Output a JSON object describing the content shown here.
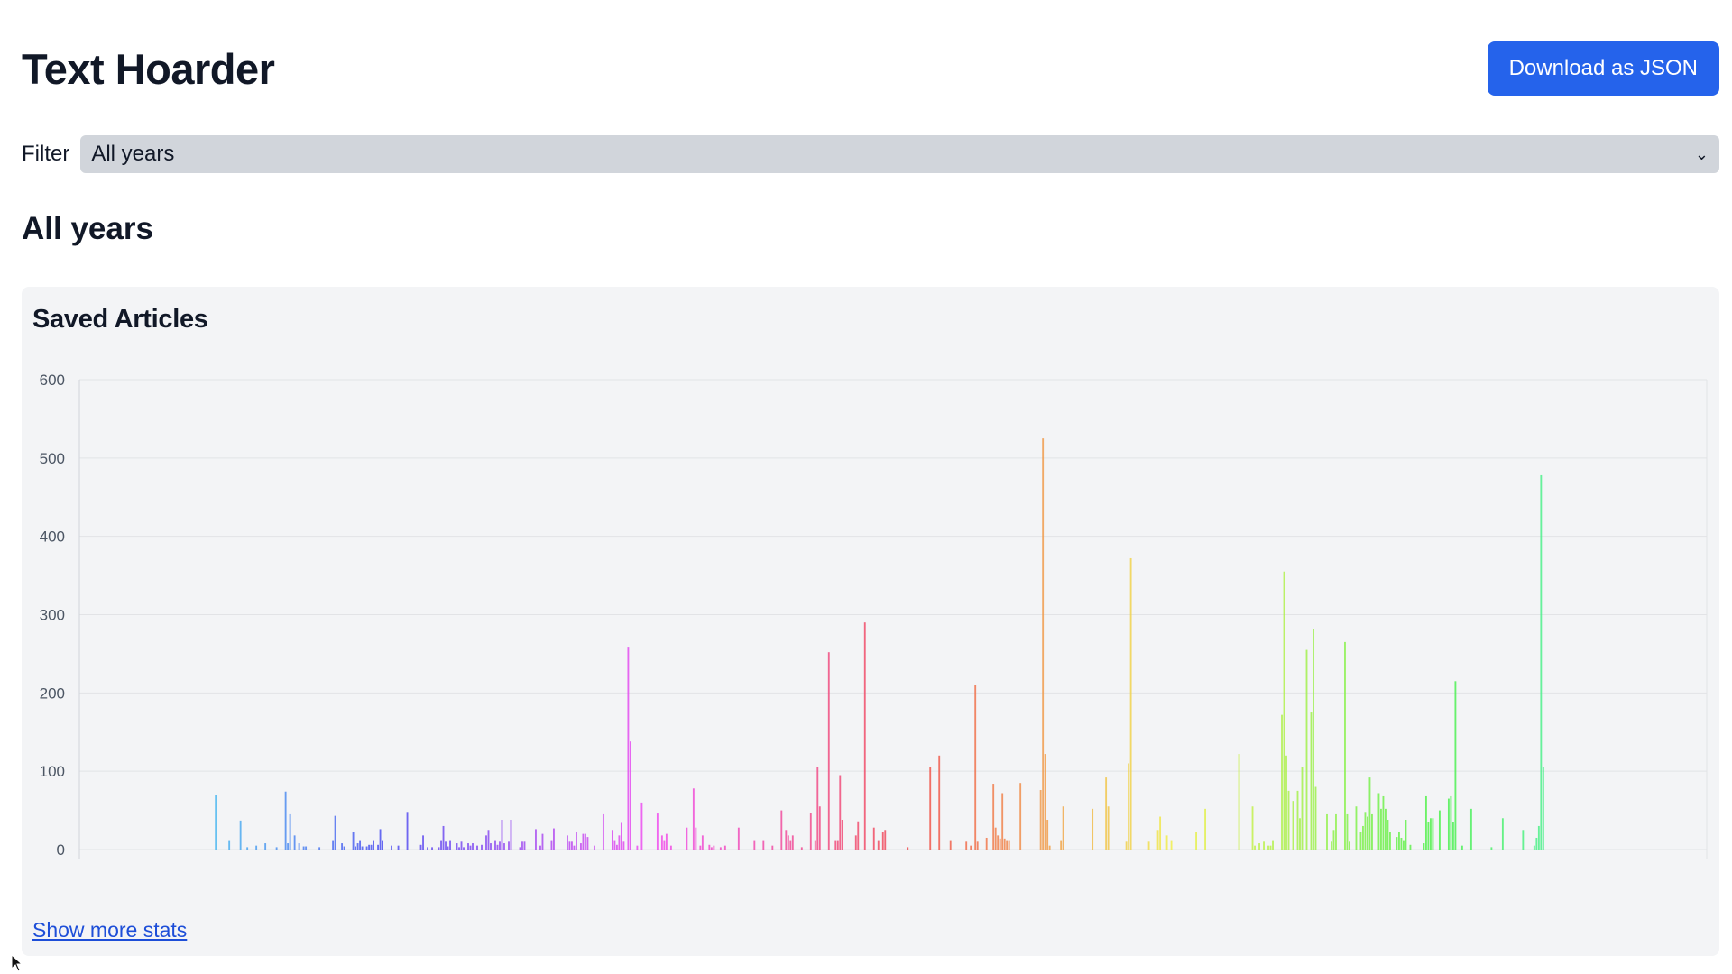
{
  "app": {
    "title": "Text Hoarder"
  },
  "header": {
    "download_label": "Download as JSON"
  },
  "filter": {
    "label": "Filter",
    "selected": "All years"
  },
  "section": {
    "title": "All years"
  },
  "card": {
    "title": "Saved Articles",
    "more_link": "Show more stats"
  },
  "colors": {
    "accent": "#2563eb",
    "select_bg": "#d1d5db",
    "card_bg": "#f3f4f6",
    "link": "#1d4ed8"
  },
  "chart_data": {
    "type": "bar",
    "title": "Saved Articles",
    "xlabel": "",
    "ylabel": "",
    "ylim": [
      0,
      600
    ],
    "yticks": [
      0,
      100,
      200,
      300,
      400,
      500,
      600
    ],
    "grid": true,
    "legend": "none",
    "values": [
      0,
      0,
      0,
      0,
      0,
      0,
      0,
      0,
      0,
      0,
      0,
      0,
      0,
      0,
      0,
      0,
      0,
      0,
      0,
      0,
      0,
      0,
      0,
      0,
      0,
      0,
      0,
      0,
      0,
      0,
      0,
      0,
      0,
      0,
      0,
      0,
      0,
      0,
      0,
      0,
      0,
      0,
      0,
      0,
      0,
      0,
      0,
      0,
      0,
      0,
      0,
      0,
      0,
      0,
      0,
      0,
      0,
      0,
      0,
      0,
      70,
      0,
      0,
      0,
      0,
      0,
      12,
      0,
      0,
      0,
      0,
      37,
      0,
      0,
      3,
      0,
      0,
      0,
      5,
      0,
      0,
      0,
      8,
      0,
      0,
      0,
      0,
      3,
      0,
      0,
      0,
      74,
      8,
      45,
      0,
      18,
      0,
      8,
      0,
      4,
      4,
      0,
      0,
      0,
      0,
      0,
      3,
      0,
      0,
      0,
      0,
      0,
      12,
      43,
      0,
      0,
      8,
      4,
      0,
      0,
      0,
      22,
      4,
      8,
      12,
      4,
      0,
      4,
      6,
      6,
      12,
      0,
      6,
      26,
      12,
      0,
      0,
      0,
      5,
      0,
      0,
      5,
      0,
      0,
      0,
      48,
      0,
      0,
      0,
      0,
      0,
      6,
      18,
      0,
      3,
      0,
      3,
      0,
      0,
      3,
      12,
      30,
      10,
      4,
      12,
      0,
      0,
      8,
      3,
      10,
      3,
      0,
      8,
      5,
      8,
      0,
      5,
      0,
      6,
      0,
      18,
      25,
      8,
      0,
      12,
      6,
      10,
      38,
      8,
      0,
      10,
      38,
      0,
      0,
      0,
      3,
      10,
      10,
      0,
      0,
      0,
      0,
      26,
      0,
      5,
      20,
      0,
      0,
      0,
      12,
      27,
      0,
      0,
      0,
      0,
      0,
      18,
      10,
      10,
      5,
      22,
      0,
      8,
      20,
      20,
      16,
      0,
      0,
      5,
      0,
      0,
      0,
      45,
      0,
      0,
      0,
      25,
      12,
      6,
      18,
      34,
      10,
      0,
      259,
      138,
      0,
      0,
      5,
      0,
      60,
      0,
      0,
      0,
      0,
      0,
      0,
      46,
      0,
      18,
      12,
      20,
      0,
      5,
      0,
      0,
      0,
      0,
      0,
      0,
      28,
      0,
      0,
      78,
      28,
      0,
      5,
      18,
      0,
      0,
      6,
      3,
      5,
      0,
      0,
      3,
      0,
      5,
      0,
      0,
      0,
      0,
      0,
      28,
      0,
      0,
      0,
      0,
      0,
      0,
      12,
      0,
      0,
      0,
      12,
      0,
      0,
      0,
      5,
      0,
      0,
      0,
      50,
      0,
      25,
      18,
      12,
      18,
      0,
      0,
      0,
      3,
      0,
      0,
      0,
      47,
      0,
      12,
      105,
      55,
      0,
      0,
      0,
      252,
      0,
      0,
      12,
      12,
      95,
      38,
      0,
      0,
      0,
      0,
      0,
      18,
      36,
      0,
      0,
      290,
      0,
      0,
      0,
      28,
      0,
      12,
      0,
      22,
      25,
      0,
      0,
      0,
      0,
      0,
      0,
      0,
      0,
      0,
      3,
      0,
      0,
      0,
      0,
      0,
      0,
      0,
      0,
      0,
      105,
      0,
      0,
      0,
      120,
      0,
      0,
      0,
      0,
      12,
      0,
      0,
      0,
      0,
      0,
      0,
      10,
      0,
      5,
      0,
      210,
      10,
      0,
      0,
      0,
      15,
      0,
      0,
      84,
      28,
      18,
      14,
      72,
      14,
      12,
      12,
      0,
      0,
      0,
      0,
      85,
      0,
      0,
      0,
      0,
      0,
      0,
      0,
      0,
      76,
      525,
      122,
      38,
      5,
      0,
      0,
      0,
      0,
      12,
      55,
      0,
      0,
      0,
      0,
      0,
      0,
      0,
      0,
      0,
      0,
      0,
      0,
      52,
      0,
      0,
      0,
      0,
      0,
      92,
      55,
      0,
      0,
      0,
      0,
      0,
      0,
      0,
      10,
      110,
      372,
      0,
      0,
      0,
      0,
      0,
      0,
      0,
      10,
      0,
      0,
      0,
      25,
      42,
      0,
      0,
      18,
      0,
      12,
      0,
      0,
      0,
      0,
      0,
      0,
      0,
      0,
      0,
      0,
      22,
      0,
      0,
      0,
      52,
      0,
      0,
      0,
      0,
      0,
      0,
      0,
      0,
      0,
      0,
      0,
      0,
      0,
      0,
      122,
      0,
      0,
      0,
      0,
      0,
      55,
      5,
      0,
      8,
      0,
      10,
      0,
      5,
      5,
      12,
      0,
      0,
      0,
      172,
      355,
      120,
      75,
      0,
      62,
      0,
      75,
      40,
      105,
      0,
      255,
      0,
      175,
      282,
      80,
      0,
      0,
      0,
      0,
      45,
      0,
      10,
      25,
      45,
      0,
      0,
      0,
      265,
      45,
      10,
      0,
      0,
      55,
      0,
      22,
      30,
      48,
      42,
      92,
      45,
      0,
      0,
      72,
      52,
      68,
      52,
      38,
      22,
      0,
      0,
      16,
      22,
      15,
      12,
      38,
      0,
      6,
      0,
      0,
      0,
      0,
      0,
      8,
      68,
      35,
      40,
      40,
      0,
      0,
      50,
      0,
      0,
      0,
      65,
      68,
      35,
      215,
      0,
      0,
      5,
      0,
      0,
      0,
      52,
      0,
      0,
      0,
      0,
      0,
      0,
      0,
      0,
      3,
      0,
      0,
      0,
      0,
      40,
      0,
      0,
      0,
      0,
      0,
      0,
      0,
      0,
      25,
      0,
      0,
      0,
      0,
      5,
      15,
      30,
      478,
      105,
      0,
      0,
      0,
      0,
      0,
      0,
      0,
      0,
      0,
      0,
      0,
      0,
      0,
      0,
      0,
      0,
      0,
      0,
      0,
      0,
      0,
      0,
      0,
      0,
      0,
      0,
      0,
      0,
      0,
      0,
      0,
      0,
      0,
      0,
      0,
      0,
      0,
      0,
      0,
      0,
      0,
      0,
      0,
      0,
      0,
      0,
      0,
      0,
      0,
      0,
      0,
      0,
      0,
      0,
      0,
      0,
      0,
      0,
      0,
      0,
      0,
      0,
      0,
      0,
      0,
      0,
      0,
      0,
      0,
      0,
      0,
      0
    ]
  }
}
